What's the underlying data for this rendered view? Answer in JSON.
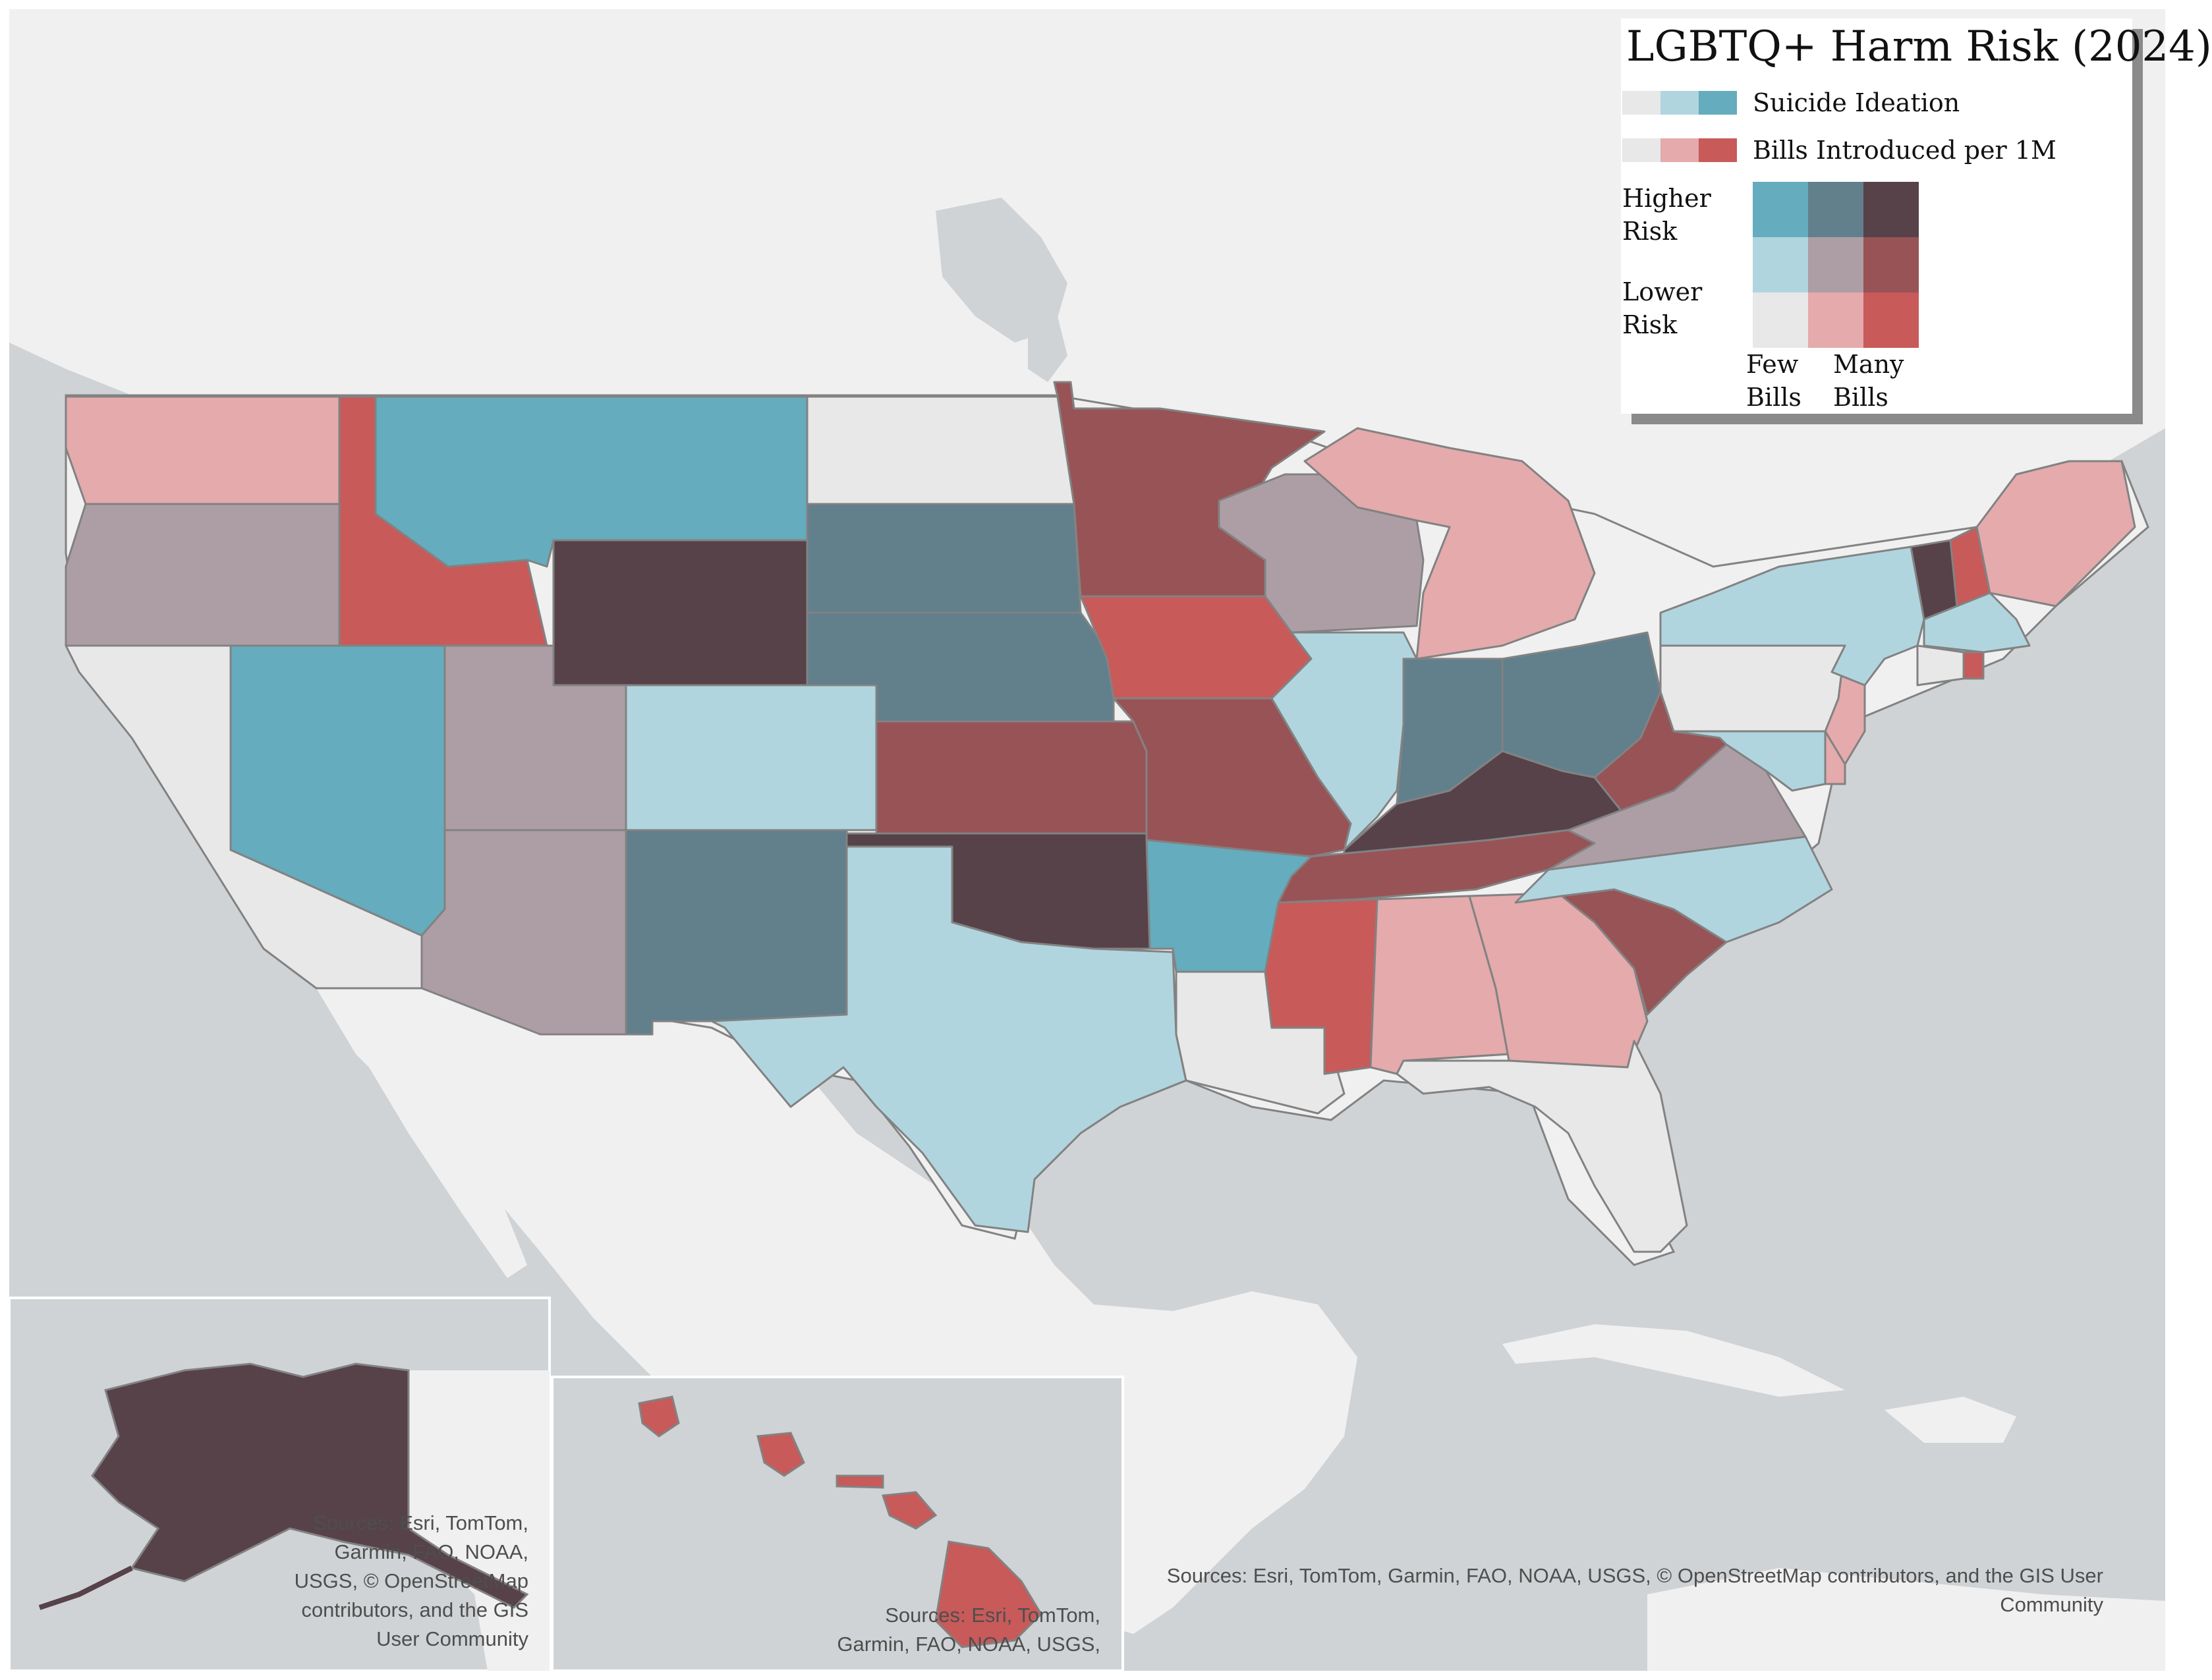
{
  "legend": {
    "title": "LGBTQ+ Harm Risk (2024)",
    "row1_label": "Suicide Ideation",
    "row2_label": "Bills Introduced per 1M",
    "higher": [
      "Higher",
      "Risk"
    ],
    "lower": [
      "Lower",
      "Risk"
    ],
    "few": [
      "Few",
      "Bills"
    ],
    "many": [
      "Many",
      "Bills"
    ]
  },
  "colors": {
    "low_low": "#e8e8e8",
    "mid_low": "#e4aaac",
    "high_low": "#c85a5a",
    "low_mid": "#b0d5df",
    "mid_mid": "#ad9ea5",
    "high_mid": "#985356",
    "low_high": "#64acbe",
    "mid_high": "#627f8c",
    "high_high": "#574249",
    "ocean": "#d0d3d5",
    "land": "#f0f0f0",
    "border": "#828282"
  },
  "states": [
    {
      "name": "Washington",
      "class": "mid_low"
    },
    {
      "name": "Oregon",
      "class": "mid_mid"
    },
    {
      "name": "California",
      "class": "low_low"
    },
    {
      "name": "Idaho",
      "class": "high_low"
    },
    {
      "name": "Nevada",
      "class": "low_high"
    },
    {
      "name": "Utah",
      "class": "mid_mid"
    },
    {
      "name": "Arizona",
      "class": "mid_mid"
    },
    {
      "name": "Montana",
      "class": "low_high"
    },
    {
      "name": "Wyoming",
      "class": "high_high"
    },
    {
      "name": "Colorado",
      "class": "low_mid"
    },
    {
      "name": "New Mexico",
      "class": "mid_high"
    },
    {
      "name": "North Dakota",
      "class": "low_low"
    },
    {
      "name": "South Dakota",
      "class": "mid_high"
    },
    {
      "name": "Nebraska",
      "class": "mid_high"
    },
    {
      "name": "Kansas",
      "class": "high_mid"
    },
    {
      "name": "Oklahoma",
      "class": "high_high"
    },
    {
      "name": "Texas",
      "class": "low_mid"
    },
    {
      "name": "Minnesota",
      "class": "high_mid"
    },
    {
      "name": "Iowa",
      "class": "high_low"
    },
    {
      "name": "Missouri",
      "class": "high_mid"
    },
    {
      "name": "Arkansas",
      "class": "low_high"
    },
    {
      "name": "Louisiana",
      "class": "low_low"
    },
    {
      "name": "Wisconsin",
      "class": "mid_mid"
    },
    {
      "name": "Illinois",
      "class": "low_mid"
    },
    {
      "name": "Michigan",
      "class": "mid_low"
    },
    {
      "name": "Indiana",
      "class": "mid_high"
    },
    {
      "name": "Ohio",
      "class": "mid_high"
    },
    {
      "name": "Kentucky",
      "class": "high_high"
    },
    {
      "name": "Tennessee",
      "class": "high_mid"
    },
    {
      "name": "Mississippi",
      "class": "high_low"
    },
    {
      "name": "Alabama",
      "class": "mid_low"
    },
    {
      "name": "Georgia",
      "class": "mid_low"
    },
    {
      "name": "Florida",
      "class": "low_low"
    },
    {
      "name": "South Carolina",
      "class": "high_mid"
    },
    {
      "name": "North Carolina",
      "class": "low_mid"
    },
    {
      "name": "Virginia",
      "class": "mid_mid"
    },
    {
      "name": "West Virginia",
      "class": "high_mid"
    },
    {
      "name": "Maryland",
      "class": "low_mid"
    },
    {
      "name": "Delaware",
      "class": "mid_low"
    },
    {
      "name": "New Jersey",
      "class": "mid_low"
    },
    {
      "name": "Pennsylvania",
      "class": "low_low"
    },
    {
      "name": "New York",
      "class": "low_mid"
    },
    {
      "name": "Vermont",
      "class": "high_high"
    },
    {
      "name": "New Hampshire",
      "class": "high_low"
    },
    {
      "name": "Maine",
      "class": "mid_low"
    },
    {
      "name": "Massachusetts",
      "class": "low_mid"
    },
    {
      "name": "Connecticut",
      "class": "low_low"
    },
    {
      "name": "Rhode Island",
      "class": "high_low"
    },
    {
      "name": "Alaska",
      "class": "high_high"
    },
    {
      "name": "Hawaii",
      "class": "high_low"
    }
  ],
  "sources": {
    "main": [
      "Sources: Esri, TomTom, Garmin, FAO, NOAA, USGS, © OpenStreetMap contributors, and the GIS User",
      "Community"
    ],
    "alaska": [
      "Sources: Esri, TomTom,",
      "Garmin, FAO, NOAA,",
      "USGS, © OpenStreetMap",
      "contributors, and the GIS",
      "User Community"
    ],
    "hawaii": [
      "Sources: Esri, TomTom,",
      "Garmin, FAO, NOAA, USGS,"
    ]
  }
}
